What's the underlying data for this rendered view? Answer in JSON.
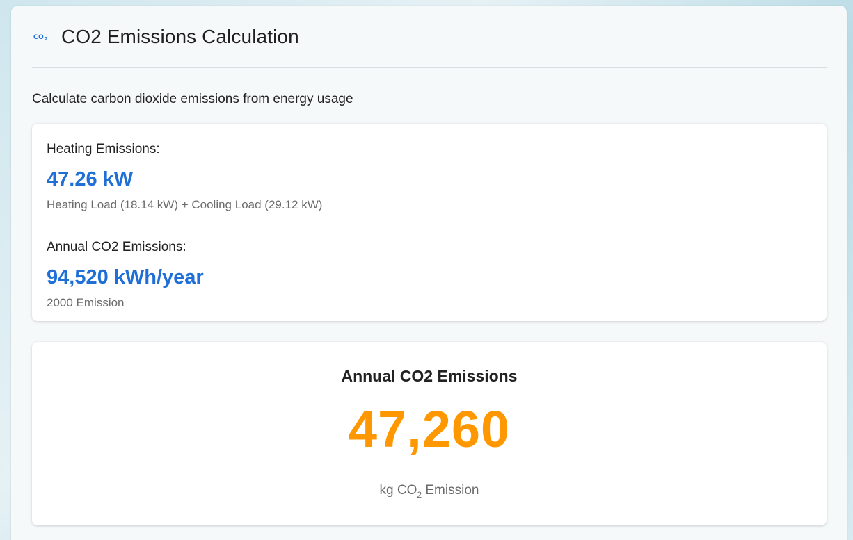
{
  "header": {
    "icon": "co2-icon",
    "title": "CO2 Emissions Calculation"
  },
  "subtitle": "Calculate carbon dioxide emissions from energy usage",
  "emissions_card": {
    "heating": {
      "label": "Heating Emissions:",
      "value": "47.26 kW",
      "note": "Heating Load (18.14 kW) + Cooling Load (29.12 kW)"
    },
    "annual": {
      "label": "Annual CO2 Emissions:",
      "value": "94,520 kWh/year",
      "note": "2000 Emission"
    }
  },
  "annual_card": {
    "title": "Annual CO2 Emissions",
    "value": "47,260",
    "unit_prefix": "kg CO",
    "unit_sub": "2",
    "unit_suffix": " Emission"
  },
  "colors": {
    "accent_blue": "#1f6fd6",
    "accent_orange": "#ff9800"
  }
}
